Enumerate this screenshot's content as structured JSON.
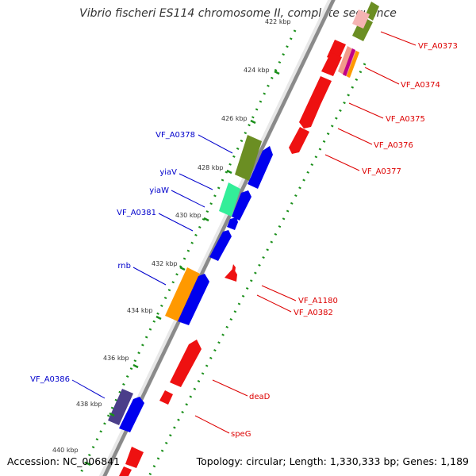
{
  "title": "Vibrio fischeri ES114 chromosome II, complete sequence",
  "accession": "Accession: NC_006841",
  "topology": "Topology: circular; Length: 1,330,333 bp; Genes: 1,189",
  "colors": {
    "backbone": "#8a8a8a",
    "forward_gene": "#0000ee",
    "reverse_gene": "#ee0000",
    "tick_dots": "#228b22",
    "forward_label": "#0000cc",
    "reverse_label": "#dd0000"
  },
  "scale_labels": [
    "422 kbp",
    "424 kbp",
    "426 kbp",
    "428 kbp",
    "430 kbp",
    "432 kbp",
    "434 kbp",
    "436 kbp",
    "438 kbp",
    "440 kbp"
  ],
  "forward_genes": [
    "VF_A0378",
    "yiaV",
    "yiaW",
    "VF_A0381",
    "rnb",
    "VF_A0386"
  ],
  "reverse_genes": [
    "VF_A0373",
    "VF_A0374",
    "VF_A0375",
    "VF_A0376",
    "VF_A0377",
    "VF_A1180",
    "VF_A0382",
    "deaD",
    "speG"
  ]
}
